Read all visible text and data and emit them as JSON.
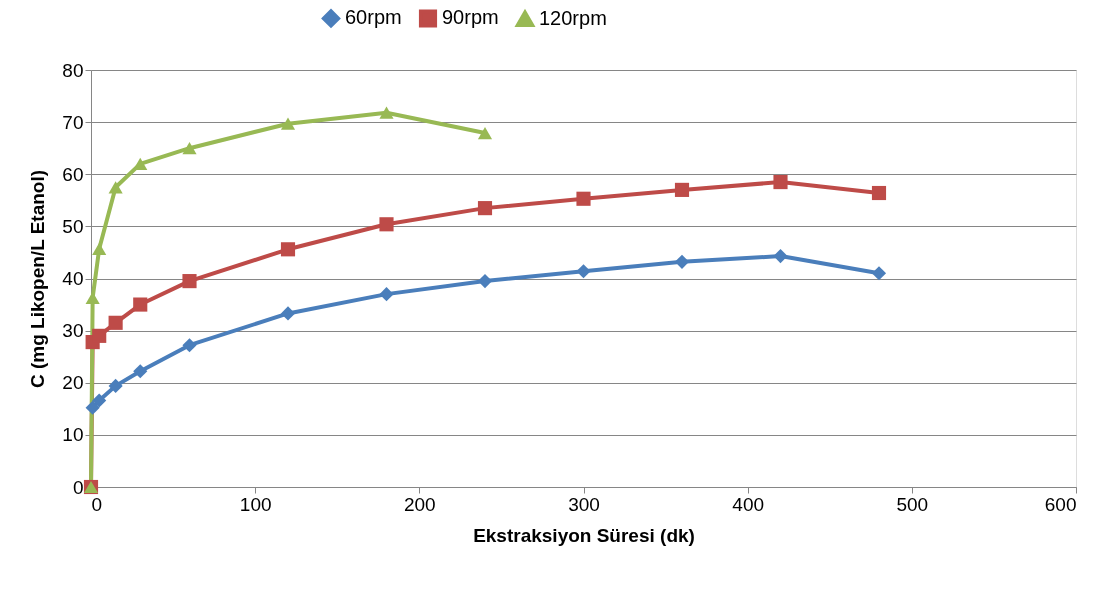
{
  "chart_data": {
    "type": "line",
    "xlabel": "Ekstraksiyon Süresi (dk)",
    "ylabel": "C (mg Likopen/L Etanol)",
    "xlim": [
      0,
      600
    ],
    "xticks": [
      0,
      100,
      200,
      300,
      400,
      500,
      600
    ],
    "ylim": [
      0,
      80
    ],
    "yticks": [
      0,
      10,
      20,
      30,
      40,
      50,
      60,
      70,
      80
    ],
    "grid": "y",
    "legend": "top",
    "series": [
      {
        "name": "60rpm",
        "color": "#4a7ebb",
        "marker": "diamond",
        "x": [
          1,
          5,
          15,
          30,
          60,
          120,
          180,
          240,
          300,
          360,
          420,
          480
        ],
        "values": [
          15.2,
          16.6,
          19.4,
          22.2,
          27.2,
          33.3,
          37,
          39.5,
          41.4,
          43.2,
          44.3,
          41
        ]
      },
      {
        "name": "90rpm",
        "color": "#be4b48",
        "marker": "square",
        "x": [
          0,
          1,
          5,
          15,
          30,
          60,
          120,
          180,
          240,
          300,
          360,
          420,
          480
        ],
        "values": [
          0,
          27.8,
          29,
          31.5,
          35,
          39.5,
          45.6,
          50.4,
          53.5,
          55.3,
          57,
          58.5,
          56.4
        ]
      },
      {
        "name": "120rpm",
        "color": "#98b954",
        "marker": "triangle",
        "x": [
          0,
          1,
          5,
          15,
          30,
          60,
          120,
          180,
          240
        ],
        "values": [
          0,
          36.3,
          45.7,
          57.5,
          62,
          65,
          69.7,
          71.8,
          67.9
        ]
      }
    ]
  }
}
